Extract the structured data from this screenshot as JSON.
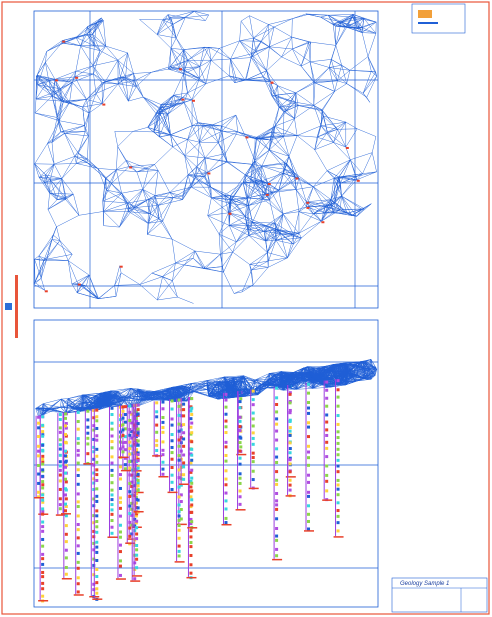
{
  "title_block": {
    "title": "Geology Sample 1"
  }
}
